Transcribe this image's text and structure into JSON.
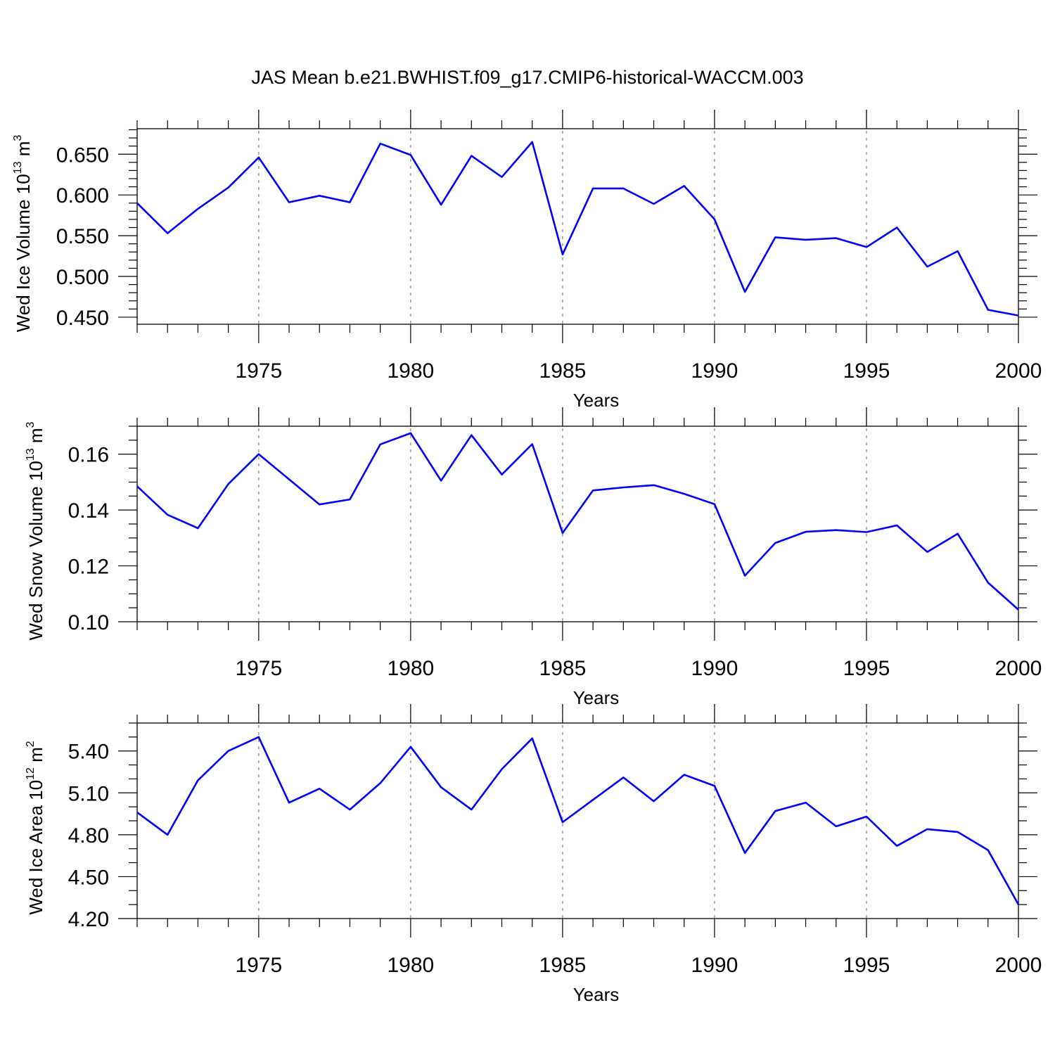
{
  "chart_data": {
    "type": "line",
    "title": "JAS Mean b.e21.BWHIST.f09_g17.CMIP6-historical-WACCM.003",
    "line_color": "#0000ff",
    "panels": [
      {
        "id": "ice-volume",
        "ylabel": {
          "text": "Wed Ice Volume 10",
          "exponent": "13",
          "unit": " m",
          "unit_exponent": "3"
        },
        "xlabel": "Years",
        "xlim": [
          1971,
          2000
        ],
        "ylim": [
          0.4413,
          0.6813
        ],
        "yticks": [
          0.45,
          0.5,
          0.55,
          0.6,
          0.65
        ],
        "ytick_labels": [
          "0.450",
          "0.500",
          "0.550",
          "0.600",
          "0.650"
        ],
        "yminor_step": 0.01,
        "xticks": [
          1975,
          1980,
          1985,
          1990,
          1995,
          2000
        ],
        "xtick_labels": [
          "1975",
          "1980",
          "1985",
          "1990",
          "1995",
          "2000"
        ],
        "grid_x": [
          1975,
          1980,
          1985,
          1990,
          1995
        ],
        "x": [
          1971,
          1972,
          1973,
          1974,
          1975,
          1976,
          1977,
          1978,
          1979,
          1980,
          1981,
          1982,
          1983,
          1984,
          1985,
          1986,
          1987,
          1988,
          1989,
          1990,
          1991,
          1992,
          1993,
          1994,
          1995,
          1996,
          1997,
          1998,
          1999,
          2000
        ],
        "values": [
          0.59,
          0.553,
          0.583,
          0.609,
          0.646,
          0.591,
          0.599,
          0.591,
          0.663,
          0.649,
          0.588,
          0.648,
          0.622,
          0.665,
          0.527,
          0.608,
          0.608,
          0.589,
          0.611,
          0.57,
          0.481,
          0.548,
          0.545,
          0.547,
          0.536,
          0.56,
          0.512,
          0.531,
          0.459,
          0.452
        ]
      },
      {
        "id": "snow-volume",
        "ylabel": {
          "text": "Wed Snow Volume 10",
          "exponent": "13",
          "unit": " m",
          "unit_exponent": "3"
        },
        "xlabel": "Years",
        "xlim": [
          1971,
          2000
        ],
        "ylim": [
          0.1,
          0.17
        ],
        "yticks": [
          0.1,
          0.12,
          0.14,
          0.16
        ],
        "ytick_labels": [
          "0.10",
          "0.12",
          "0.14",
          "0.16"
        ],
        "yminor_step": 0.005,
        "xticks": [
          1975,
          1980,
          1985,
          1990,
          1995,
          2000
        ],
        "xtick_labels": [
          "1975",
          "1980",
          "1985",
          "1990",
          "1995",
          "2000"
        ],
        "grid_x": [
          1975,
          1980,
          1985,
          1990,
          1995
        ],
        "x": [
          1971,
          1972,
          1973,
          1974,
          1975,
          1976,
          1977,
          1978,
          1979,
          1980,
          1981,
          1982,
          1983,
          1984,
          1985,
          1986,
          1987,
          1988,
          1989,
          1990,
          1991,
          1992,
          1993,
          1994,
          1995,
          1996,
          1997,
          1998,
          1999,
          2000
        ],
        "values": [
          0.1485,
          0.1383,
          0.1335,
          0.1493,
          0.16,
          0.151,
          0.142,
          0.1438,
          0.1635,
          0.1675,
          0.1505,
          0.1668,
          0.1527,
          0.1636,
          0.1318,
          0.147,
          0.1481,
          0.1489,
          0.1458,
          0.1421,
          0.1165,
          0.1282,
          0.1322,
          0.1328,
          0.1321,
          0.1345,
          0.125,
          0.1315,
          0.114,
          0.1043
        ]
      },
      {
        "id": "ice-area",
        "ylabel": {
          "text": "Wed Ice Area 10",
          "exponent": "12",
          "unit": " m",
          "unit_exponent": "2"
        },
        "xlabel": "Years",
        "xlim": [
          1971,
          2000
        ],
        "ylim": [
          4.2,
          5.6
        ],
        "yticks": [
          4.2,
          4.5,
          4.8,
          5.1,
          5.4
        ],
        "ytick_labels": [
          "4.20",
          "4.50",
          "4.80",
          "5.10",
          "5.40"
        ],
        "yminor_step": 0.1,
        "xticks": [
          1975,
          1980,
          1985,
          1990,
          1995,
          2000
        ],
        "xtick_labels": [
          "1975",
          "1980",
          "1985",
          "1990",
          "1995",
          "2000"
        ],
        "grid_x": [
          1975,
          1980,
          1985,
          1990,
          1995
        ],
        "x": [
          1971,
          1972,
          1973,
          1974,
          1975,
          1976,
          1977,
          1978,
          1979,
          1980,
          1981,
          1982,
          1983,
          1984,
          1985,
          1986,
          1987,
          1988,
          1989,
          1990,
          1991,
          1992,
          1993,
          1994,
          1995,
          1996,
          1997,
          1998,
          1999,
          2000
        ],
        "values": [
          4.96,
          4.8,
          5.19,
          5.4,
          5.5,
          5.03,
          5.13,
          4.98,
          5.17,
          5.43,
          5.14,
          4.98,
          5.27,
          5.49,
          4.89,
          5.05,
          5.21,
          5.04,
          5.23,
          5.15,
          4.67,
          4.97,
          5.03,
          4.86,
          4.93,
          4.72,
          4.84,
          4.82,
          4.69,
          4.3
        ]
      }
    ]
  }
}
